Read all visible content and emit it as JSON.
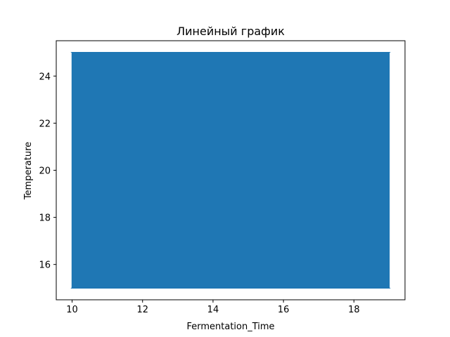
{
  "chart_data": {
    "type": "line",
    "title": "Линейный график",
    "xlabel": "Fermentation_Time",
    "ylabel": "Temperature",
    "xlim": [
      9.55,
      19.45
    ],
    "ylim": [
      14.5,
      25.5
    ],
    "xticks": [
      10,
      12,
      14,
      16,
      18
    ],
    "yticks": [
      16,
      18,
      20,
      22,
      24
    ],
    "xtick_labels": [
      "10",
      "12",
      "14",
      "16",
      "18"
    ],
    "ytick_labels": [
      "16",
      "18",
      "20",
      "22",
      "24"
    ],
    "grid": false,
    "legend": false,
    "series_color": "#1f77b4",
    "series": [
      {
        "x": [
          10,
          19,
          10,
          19,
          10,
          19,
          10,
          19,
          10,
          19,
          10,
          19,
          10,
          19,
          10,
          19,
          10,
          19,
          10,
          19,
          10,
          19,
          10,
          19
        ],
        "y": [
          15,
          25,
          25,
          15,
          15,
          25,
          25,
          15,
          15,
          25,
          25,
          15,
          15,
          25,
          25,
          15,
          15,
          25,
          25,
          15,
          15,
          25,
          25,
          15
        ]
      }
    ]
  }
}
